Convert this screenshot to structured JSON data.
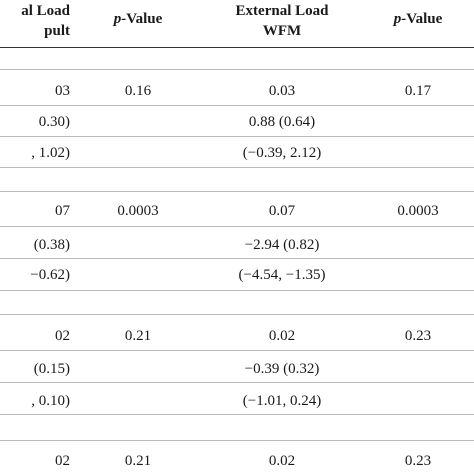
{
  "header": {
    "col1_line1": "al Load",
    "col1_line2": "pult",
    "pvalue_label": "Value",
    "pvalue_prefix": "p-",
    "col3_line1": "External Load",
    "col3_line2": "WFM",
    "pvalue2_prefix": "p-",
    "pvalue2_label": "Value"
  },
  "rows": [
    {
      "c1": "03",
      "p1": "0.16",
      "c3": "0.03",
      "p2": "0.17"
    },
    {
      "c1": "0.30)",
      "p1": "",
      "c3": "0.88 (0.64)",
      "p2": ""
    },
    {
      "c1": ", 1.02)",
      "p1": "",
      "c3": "(−0.39, 2.12)",
      "p2": ""
    },
    {
      "c1": "07",
      "p1": "0.0003",
      "c3": "0.07",
      "p2": "0.0003"
    },
    {
      "c1": "(0.38)",
      "p1": "",
      "c3": "−2.94 (0.82)",
      "p2": ""
    },
    {
      "c1": "−0.62)",
      "p1": "",
      "c3": "(−4.54, −1.35)",
      "p2": ""
    },
    {
      "c1": "02",
      "p1": "0.21",
      "c3": "0.02",
      "p2": "0.23"
    },
    {
      "c1": "(0.15)",
      "p1": "",
      "c3": "−0.39 (0.32)",
      "p2": ""
    },
    {
      "c1": ", 0.10)",
      "p1": "",
      "c3": "(−1.01, 0.24)",
      "p2": ""
    },
    {
      "c1": "02",
      "p1": "0.21",
      "c3": "0.02",
      "p2": "0.23"
    }
  ]
}
